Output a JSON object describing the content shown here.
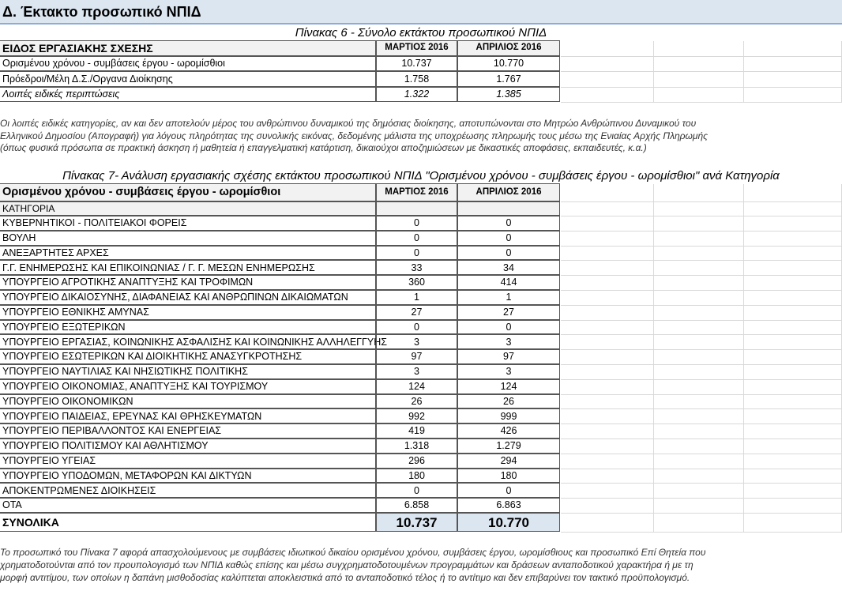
{
  "header": {
    "title": "Δ. Έκτακτο προσωπικό ΝΠΙΔ"
  },
  "table6": {
    "title": "Πίνακας 6 - Σύνολο εκτάκτου προσωπικού ΝΠΙΔ",
    "columns": [
      "ΕΙΔΟΣ ΕΡΓΑΣΙΑΚΗΣ ΣΧΕΣΗΣ",
      "ΜΑΡΤΙΟΣ 2016",
      "ΑΠΡΙΛΙΟΣ 2016"
    ],
    "rows": [
      [
        "Ορισμένου χρόνου - συμβάσεις έργου - ωρομίσθιοι",
        "10.737",
        "10.770"
      ],
      [
        "Πρόεδροι/Μέλη Δ.Σ./Οργανα Διοίκησης",
        "1.758",
        "1.767"
      ],
      [
        "Λοιπές ειδικές περιπτώσεις",
        "1.322",
        "1.385"
      ]
    ]
  },
  "note6": [
    "Οι λοιπές ειδικές κατηγορίες, αν και δεν αποτελούν μέρος του ανθρώπινου δυναμικού της δημόσιας διοίκησης, αποτυπώνονται στο Μητρώο Ανθρώπινου Δυναμικού του",
    "Ελληνικού Δημοσίου (Απογραφή) για λόγους πληρότητας της συνολικής εικόνας, δεδομένης μάλιστα της υποχρέωσης πληρωμής τους μέσω της Ενιαίας Αρχής Πληρωμής",
    "(όπως φυσικά πρόσωπα σε πρακτική άσκηση ή μαθητεία ή επαγγελματική κατάρτιση, δικαιούχοι αποζημιώσεων με δικαστικές αποφάσεις, εκπαιδευτές, κ.α.)"
  ],
  "table7": {
    "title": "Πίνακας 7- Ανάλυση εργασιακής σχέσης εκτάκτου προσωπικού ΝΠΙΔ \"Ορισμένου χρόνου - συμβάσεις έργου - ωρομίσθιοι\" ανά Κατηγορία",
    "columns": [
      "Ορισμένου χρόνου - συμβάσεις έργου - ωρομίσθιοι",
      "ΜΑΡΤΙΟΣ 2016",
      "ΑΠΡΙΛΙΟΣ 2016"
    ],
    "subheader": "ΚΑΤΗΓΟΡΙΑ",
    "rows": [
      [
        "ΚΥΒΕΡΝΗΤΙΚΟΙ - ΠΟΛΙΤΕΙΑΚΟΙ ΦΟΡΕΙΣ",
        "0",
        "0"
      ],
      [
        "ΒΟΥΛΗ",
        "0",
        "0"
      ],
      [
        "ΑΝΕΞΑΡΤΗΤΕΣ ΑΡΧΕΣ",
        "0",
        "0"
      ],
      [
        "Γ.Γ. ΕΝΗΜΕΡΩΣΗΣ ΚΑΙ ΕΠΙΚΟΙΝΩΝΙΑΣ / Γ. Γ. ΜΕΣΩΝ ΕΝΗΜΕΡΩΣΗΣ",
        "33",
        "34"
      ],
      [
        "ΥΠΟΥΡΓΕΙΟ ΑΓΡΟΤΙΚΗΣ ΑΝΑΠΤΥΞΗΣ ΚΑΙ ΤΡΟΦΙΜΩΝ",
        "360",
        "414"
      ],
      [
        "ΥΠΟΥΡΓΕΙΟ ΔΙΚΑΙΟΣΥΝΗΣ, ΔΙΑΦΑΝΕΙΑΣ ΚΑΙ ΑΝΘΡΩΠΙΝΩΝ ΔΙΚΑΙΩΜΑΤΩΝ",
        "1",
        "1"
      ],
      [
        "ΥΠΟΥΡΓΕΙΟ ΕΘΝΙΚΗΣ ΑΜΥΝΑΣ",
        "27",
        "27"
      ],
      [
        "ΥΠΟΥΡΓΕΙΟ ΕΞΩΤΕΡΙΚΩΝ",
        "0",
        "0"
      ],
      [
        "ΥΠΟΥΡΓΕΙΟ ΕΡΓΑΣΙΑΣ, ΚΟΙΝΩΝΙΚΗΣ ΑΣΦΑΛΙΣΗΣ ΚΑΙ ΚΟΙΝΩΝΙΚΗΣ ΑΛΛΗΛΕΓΓΥΗΣ",
        "3",
        "3"
      ],
      [
        "ΥΠΟΥΡΓΕΙΟ ΕΣΩΤΕΡΙΚΩΝ ΚΑΙ ΔΙΟΙΚΗΤΙΚΗΣ ΑΝΑΣΥΓΚΡΟΤΗΣΗΣ",
        "97",
        "97"
      ],
      [
        "ΥΠΟΥΡΓΕΙΟ ΝΑΥΤΙΛΙΑΣ ΚΑΙ ΝΗΣΙΩΤΙΚΗΣ ΠΟΛΙΤΙΚΗΣ",
        "3",
        "3"
      ],
      [
        "ΥΠΟΥΡΓΕΙΟ ΟΙΚΟΝΟΜΙΑΣ, ΑΝΑΠΤΥΞΗΣ ΚΑΙ ΤΟΥΡΙΣΜΟΥ",
        "124",
        "124"
      ],
      [
        "ΥΠΟΥΡΓΕΙΟ ΟΙΚΟΝΟΜΙΚΩΝ",
        "26",
        "26"
      ],
      [
        "ΥΠΟΥΡΓΕΙΟ ΠΑΙΔΕΙΑΣ, ΕΡΕΥΝΑΣ ΚΑΙ ΘΡΗΣΚΕΥΜΑΤΩΝ",
        "992",
        "999"
      ],
      [
        "ΥΠΟΥΡΓΕΙΟ ΠΕΡΙΒΑΛΛΟΝΤΟΣ ΚΑΙ ΕΝΕΡΓΕΙΑΣ",
        "419",
        "426"
      ],
      [
        "ΥΠΟΥΡΓΕΙΟ ΠΟΛΙΤΙΣΜΟΥ ΚΑΙ ΑΘΛΗΤΙΣΜΟΥ",
        "1.318",
        "1.279"
      ],
      [
        "ΥΠΟΥΡΓΕΙΟ ΥΓΕΙΑΣ",
        "296",
        "294"
      ],
      [
        "ΥΠΟΥΡΓΕΙΟ ΥΠΟΔΟΜΩΝ, ΜΕΤΑΦΟΡΩΝ ΚΑΙ ΔΙΚΤΥΩΝ",
        "180",
        "180"
      ],
      [
        "ΑΠΟΚΕΝΤΡΩΜΕΝΕΣ ΔΙΟΙΚΗΣΕΙΣ",
        "0",
        "0"
      ],
      [
        "ΟΤΑ",
        "6.858",
        "6.863"
      ]
    ],
    "total": [
      "ΣΥΝΟΛΙΚΑ",
      "10.737",
      "10.770"
    ]
  },
  "note7": [
    "Το προσωπικό του Πίνακα 7 αφορά απασχολούμενους με συμβάσεις ιδιωτικού δικαίου ορισμένου χρόνου, συμβάσεις έργου, ωρομίσθιους και προσωπικό Επί Θητεία που",
    "χρηματοδοτούνται από τον  προυπολογισμό των ΝΠΙΔ καθώς επίσης και μέσω συγχρηματοδοτουμένων προγραμμάτων και δράσεων ανταποδοτικού χαρακτήρα ή με τη",
    "μορφή αντιτίμου, των οποίων η δαπάνη μισθοδοσίας καλύπτεται αποκλειστικά από το ανταποδοτικό τέλος ή το αντίτιμο και δεν επιβαρύνει τον τακτικό προϋπολογισμό."
  ]
}
